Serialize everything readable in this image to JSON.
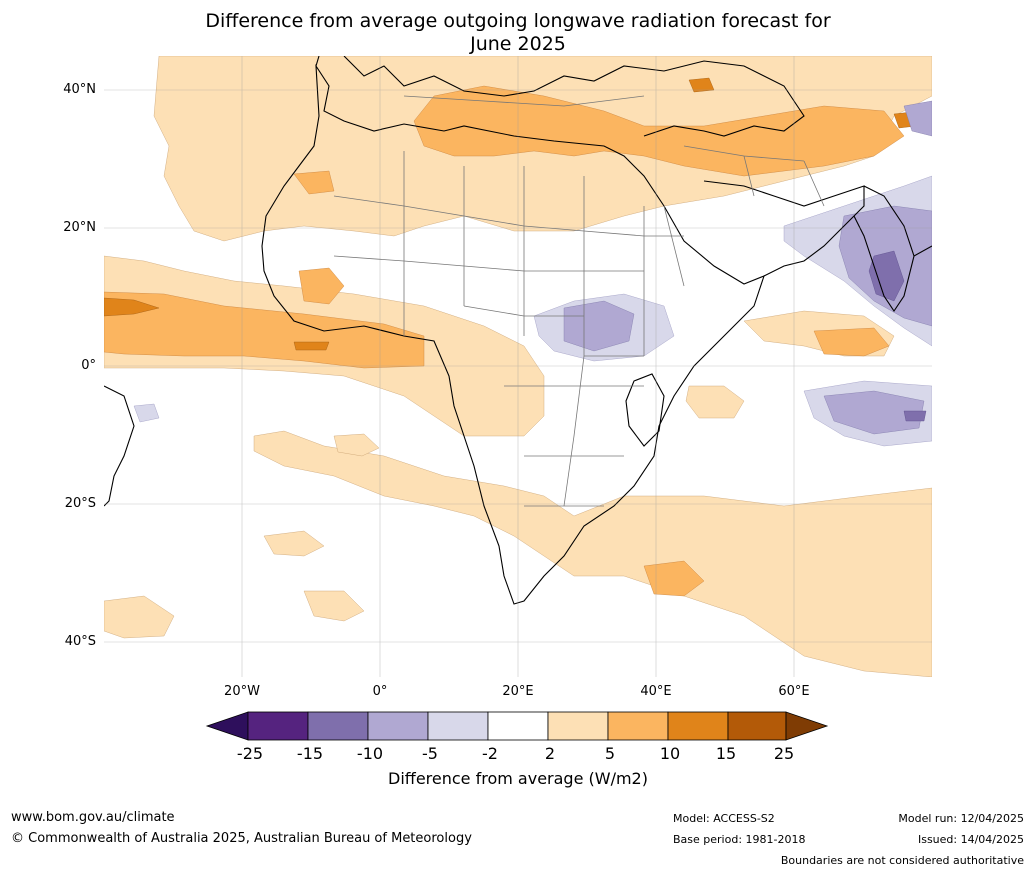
{
  "title_line1": "Difference from average outgoing longwave radiation forecast for",
  "title_line2": "June 2025",
  "map": {
    "lon_range": [
      -40,
      80
    ],
    "lat_range": [
      -45,
      45
    ],
    "lat_ticks": [
      {
        "value": 40,
        "label": "40°N"
      },
      {
        "value": 20,
        "label": "20°N"
      },
      {
        "value": 0,
        "label": "0°"
      },
      {
        "value": -20,
        "label": "20°S"
      },
      {
        "value": -40,
        "label": "40°S"
      }
    ],
    "lon_ticks": [
      {
        "value": -20,
        "label": "20°W"
      },
      {
        "value": 0,
        "label": "0°"
      },
      {
        "value": 20,
        "label": "20°E"
      },
      {
        "value": 40,
        "label": "40°E"
      },
      {
        "value": 60,
        "label": "60°E"
      }
    ]
  },
  "colorbar": {
    "title": "Difference from average (W/m2)",
    "tick_labels": [
      "-25",
      "-15",
      "-10",
      "-5",
      "-2",
      "2",
      "5",
      "10",
      "15",
      "25"
    ],
    "colors": [
      "#2e0f5c",
      "#55237f",
      "#7f6fac",
      "#b0a8d2",
      "#d8d8ea",
      "#ffffff",
      "#fde0b5",
      "#fbb560",
      "#e0841a",
      "#b35a08",
      "#7f3c04"
    ]
  },
  "footer": {
    "website": "www.bom.gov.au/climate",
    "copyright": "© Commonwealth of Australia 2025, Australian Bureau of Meteorology",
    "model": "Model: ACCESS-S2",
    "base_period": "Base period: 1981-2018",
    "model_run": "Model run: 12/04/2025",
    "issued": "Issued: 14/04/2025",
    "disclaimer": "Boundaries are not considered authoritative"
  }
}
